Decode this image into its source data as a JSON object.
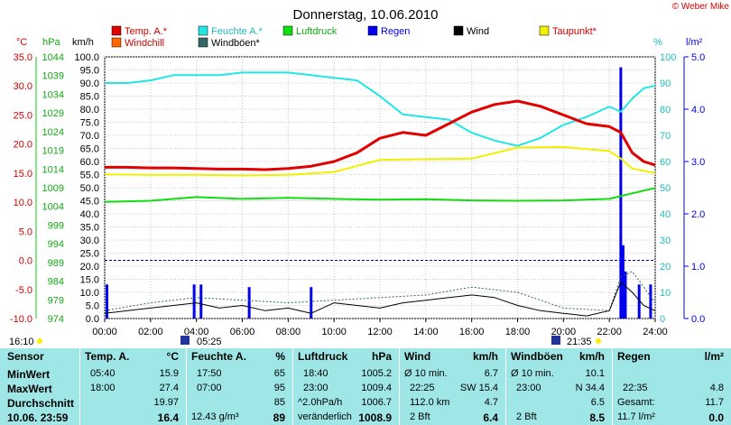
{
  "title": "Donnerstag, 10.06.2010",
  "credit": "© Weber Mike",
  "axis_units": {
    "temp": "°C",
    "pressure": "hPa",
    "wind": "km/h",
    "humidity": "%",
    "rain": "l/m²"
  },
  "legend": [
    {
      "label": "Temp. A.*",
      "color": "#e00000"
    },
    {
      "label": "Feuchte A.*",
      "color": "#22e6e6"
    },
    {
      "label": "Luftdruck",
      "color": "#11dd11"
    },
    {
      "label": "Regen",
      "color": "#0000ee"
    },
    {
      "label": "Wind",
      "color": "#000000"
    },
    {
      "label": "Taupunkt*",
      "color": "#f0f000"
    },
    {
      "label": "Windchill",
      "color": "#ff6600"
    },
    {
      "label": "Windböen*",
      "color": "#336666"
    }
  ],
  "ticks": {
    "temp": [
      "35.0",
      "30.0",
      "25.0",
      "20.0",
      "15.0",
      "10.0",
      "5.0",
      "0.0",
      "-5.0",
      "-10.0"
    ],
    "pressure": [
      "1044",
      "1039",
      "1034",
      "1029",
      "1024",
      "1019",
      "1014",
      "1009",
      "1004",
      "999",
      "994",
      "989",
      "984",
      "979",
      "974"
    ],
    "wind": [
      "100.0",
      "95.0",
      "90.0",
      "85.0",
      "80.0",
      "75.0",
      "70.0",
      "65.0",
      "60.0",
      "55.0",
      "50.0",
      "45.0",
      "40.0",
      "35.0",
      "30.0",
      "25.0",
      "20.0",
      "15.0",
      "10.0",
      "5.0",
      "0.0"
    ],
    "humidity": [
      "100",
      "90",
      "80",
      "70",
      "60",
      "50",
      "40",
      "30",
      "20",
      "10",
      "0"
    ],
    "rain": [
      "5.0",
      "4.0",
      "3.0",
      "2.0",
      "1.0",
      "0.0"
    ],
    "time": [
      "00:00",
      "02:00",
      "04:00",
      "06:00",
      "08:00",
      "10:00",
      "12:00",
      "14:00",
      "16:00",
      "18:00",
      "20:00",
      "22:00",
      "24:00"
    ]
  },
  "sun": {
    "sunrise": "05:25",
    "sunset": "21:35",
    "moon_time": "16:10"
  },
  "chart_data": {
    "type": "line",
    "title": "Donnerstag, 10.06.2010",
    "x_range": [
      "00:00",
      "24:00"
    ],
    "series": [
      {
        "name": "Temp. A.*",
        "unit": "°C",
        "color": "#e00000",
        "x": [
          0,
          1,
          2,
          3,
          4,
          5,
          6,
          7,
          8,
          9,
          10,
          11,
          12,
          13,
          14,
          15,
          16,
          17,
          18,
          19,
          20,
          21,
          22,
          22.5,
          23,
          23.5,
          24
        ],
        "y": [
          16.0,
          16.0,
          15.9,
          15.9,
          15.8,
          15.7,
          15.7,
          15.6,
          15.8,
          16.2,
          17.0,
          18.5,
          21.0,
          22.0,
          21.5,
          23.5,
          25.5,
          26.8,
          27.4,
          26.5,
          25.0,
          23.5,
          23.0,
          22.0,
          18.5,
          17.0,
          16.4
        ]
      },
      {
        "name": "Feuchte A.*",
        "unit": "%",
        "color": "#22e6e6",
        "x": [
          0,
          1,
          2,
          3,
          4,
          5,
          6,
          7,
          8,
          9,
          10,
          11,
          12,
          13,
          14,
          15,
          16,
          17,
          18,
          19,
          20,
          21,
          22,
          22.5,
          23,
          23.5,
          24
        ],
        "y": [
          90,
          90,
          91,
          93,
          93,
          93,
          94,
          94,
          94,
          93,
          92,
          91,
          85,
          78,
          77,
          76,
          71,
          68,
          66,
          69,
          74,
          77,
          81,
          79,
          84,
          88,
          89
        ]
      },
      {
        "name": "Luftdruck",
        "unit": "hPa",
        "color": "#11dd11",
        "x": [
          0,
          2,
          4,
          6,
          8,
          10,
          12,
          14,
          16,
          18,
          20,
          22,
          23,
          24
        ],
        "y": [
          1005.2,
          1005.5,
          1006.5,
          1006.0,
          1006.3,
          1006.0,
          1005.8,
          1005.9,
          1005.6,
          1005.5,
          1005.6,
          1006.0,
          1007.5,
          1008.9
        ]
      },
      {
        "name": "Taupunkt*",
        "unit": "°C",
        "color": "#f0f000",
        "x": [
          0,
          2,
          4,
          6,
          8,
          10,
          12,
          14,
          16,
          18,
          20,
          22,
          22.5,
          23,
          24
        ],
        "y": [
          14.8,
          14.7,
          14.7,
          14.6,
          14.7,
          15.2,
          17.3,
          17.4,
          17.5,
          19.4,
          19.5,
          18.8,
          17.5,
          15.8,
          15.0
        ]
      },
      {
        "name": "Wind",
        "unit": "km/h",
        "color": "#000000",
        "x": [
          0,
          1,
          2,
          3,
          4,
          5,
          6,
          7,
          8,
          9,
          10,
          11,
          12,
          13,
          14,
          15,
          16,
          17,
          18,
          19,
          20,
          21,
          22,
          22.5,
          23,
          23.5,
          24
        ],
        "y": [
          2,
          3,
          4,
          5,
          6,
          4,
          5,
          3,
          4,
          2,
          6,
          5,
          4,
          6,
          7,
          8,
          9,
          8,
          5,
          3,
          2,
          1,
          3,
          14,
          10,
          5,
          3
        ]
      },
      {
        "name": "Windböen*",
        "unit": "km/h",
        "color": "#336666",
        "x": [
          0,
          2,
          4,
          6,
          8,
          10,
          12,
          14,
          16,
          18,
          20,
          22,
          22.5,
          23,
          24
        ],
        "y": [
          3,
          6,
          8,
          7,
          6,
          7,
          8,
          9,
          12,
          10,
          4,
          3,
          16,
          18,
          6
        ]
      },
      {
        "name": "Regen",
        "unit": "l/m²",
        "color": "#0000ee",
        "x": [
          0.1,
          3.9,
          4.2,
          6.3,
          9.0,
          22.5,
          22.6,
          22.7,
          23.3,
          23.8
        ],
        "y": [
          0.65,
          0.65,
          0.65,
          0.6,
          0.6,
          4.8,
          1.4,
          0.9,
          0.65,
          0.65
        ]
      }
    ]
  },
  "stats": {
    "sensor": {
      "header": "Sensor",
      "rows": [
        "MinWert",
        "MaxWert",
        "Durchschnitt",
        "10.06. 23:59"
      ]
    },
    "temp": {
      "header": "Temp. A.",
      "unit": "°C",
      "rows": [
        [
          "05:40",
          "15.9"
        ],
        [
          "18:00",
          "27.4"
        ],
        [
          "",
          "19.97"
        ],
        [
          "",
          "16.4"
        ]
      ]
    },
    "humidity": {
      "header": "Feuchte A.",
      "unit": "%",
      "rows": [
        [
          "17:50",
          "65"
        ],
        [
          "07:00",
          "95"
        ],
        [
          "",
          "85"
        ],
        [
          "12.43 g/m³",
          "89"
        ]
      ]
    },
    "pressure": {
      "header": "Luftdruck",
      "unit": "hPa",
      "rows": [
        [
          "18:40",
          "1005.2"
        ],
        [
          "23:00",
          "1009.4"
        ],
        [
          "^2.0hPa/h",
          "1006.7"
        ],
        [
          "veränderlich",
          "1008.9"
        ]
      ]
    },
    "wind": {
      "header": "Wind",
      "unit": "km/h",
      "rows": [
        [
          "Ø 10 min.",
          "6.7"
        ],
        [
          "22:25",
          "SW 15.4"
        ],
        [
          "112.0 km",
          "4.7"
        ],
        [
          "2 Bft",
          "6.4"
        ]
      ]
    },
    "gusts": {
      "header": "Windböen",
      "unit": "km/h",
      "rows": [
        [
          "Ø 10 min.",
          "10.1"
        ],
        [
          "23:00",
          "N 34.4"
        ],
        [
          "",
          "6.5"
        ],
        [
          "2 Bft",
          "8.5"
        ]
      ]
    },
    "rain": {
      "header": "Regen",
      "unit": "l/m²",
      "rows": [
        [
          "",
          ""
        ],
        [
          "22:35",
          "4.8"
        ],
        [
          "Gesamt:",
          "11.7"
        ],
        [
          "11.7 l/m²",
          "0.0"
        ]
      ]
    }
  }
}
